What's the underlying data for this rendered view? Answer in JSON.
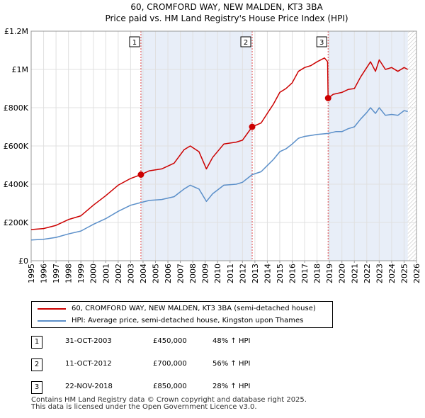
{
  "chart_data": {
    "type": "line",
    "title": "60, CROMFORD WAY, NEW MALDEN, KT3 3BA",
    "subtitle": "Price paid vs. HM Land Registry's House Price Index (HPI)",
    "x_range": [
      1995,
      2026
    ],
    "ylim": [
      0,
      1200000
    ],
    "y_ticks": [
      {
        "value": 0,
        "label": "£0"
      },
      {
        "value": 200000,
        "label": "£200K"
      },
      {
        "value": 400000,
        "label": "£400K"
      },
      {
        "value": 600000,
        "label": "£600K"
      },
      {
        "value": 800000,
        "label": "£800K"
      },
      {
        "value": 1000000,
        "label": "£1M"
      },
      {
        "value": 1200000,
        "label": "£1.2M"
      }
    ],
    "x_ticks": [
      1995,
      1996,
      1997,
      1998,
      1999,
      2000,
      2001,
      2002,
      2003,
      2004,
      2005,
      2006,
      2007,
      2008,
      2009,
      2010,
      2011,
      2012,
      2013,
      2014,
      2015,
      2016,
      2017,
      2018,
      2019,
      2020,
      2021,
      2022,
      2023,
      2024,
      2025,
      2026
    ],
    "grid": true,
    "shaded_ranges": [
      [
        2003.83,
        2012.78
      ],
      [
        2018.89,
        2025.3
      ]
    ],
    "future_hatch_from": 2025.3,
    "series": [
      {
        "name": "60, CROMFORD WAY, NEW MALDEN, KT3 3BA (semi-detached house)",
        "color": "#cc0000",
        "points": [
          [
            1995.0,
            163000
          ],
          [
            1996.0,
            168000
          ],
          [
            1997.0,
            185000
          ],
          [
            1998.0,
            215000
          ],
          [
            1999.0,
            235000
          ],
          [
            2000.0,
            290000
          ],
          [
            2001.0,
            340000
          ],
          [
            2002.0,
            395000
          ],
          [
            2003.0,
            430000
          ],
          [
            2003.83,
            450000
          ],
          [
            2004.5,
            470000
          ],
          [
            2005.5,
            480000
          ],
          [
            2006.5,
            510000
          ],
          [
            2007.3,
            580000
          ],
          [
            2007.8,
            600000
          ],
          [
            2008.5,
            570000
          ],
          [
            2009.1,
            480000
          ],
          [
            2009.6,
            540000
          ],
          [
            2010.5,
            610000
          ],
          [
            2011.5,
            620000
          ],
          [
            2012.0,
            630000
          ],
          [
            2012.78,
            700000
          ],
          [
            2013.5,
            720000
          ],
          [
            2014.5,
            820000
          ],
          [
            2015.0,
            880000
          ],
          [
            2015.5,
            900000
          ],
          [
            2016.0,
            930000
          ],
          [
            2016.5,
            990000
          ],
          [
            2017.0,
            1010000
          ],
          [
            2017.5,
            1020000
          ],
          [
            2018.0,
            1040000
          ],
          [
            2018.6,
            1060000
          ],
          [
            2018.85,
            1040000
          ],
          [
            2018.89,
            850000
          ],
          [
            2019.3,
            870000
          ],
          [
            2020.0,
            880000
          ],
          [
            2020.5,
            895000
          ],
          [
            2021.0,
            900000
          ],
          [
            2021.5,
            960000
          ],
          [
            2022.0,
            1010000
          ],
          [
            2022.3,
            1040000
          ],
          [
            2022.7,
            990000
          ],
          [
            2023.0,
            1050000
          ],
          [
            2023.5,
            1000000
          ],
          [
            2024.0,
            1010000
          ],
          [
            2024.5,
            990000
          ],
          [
            2025.0,
            1010000
          ],
          [
            2025.3,
            1000000
          ]
        ]
      },
      {
        "name": "HPI: Average price, semi-detached house, Kingston upon Thames",
        "color": "#5b8fc9",
        "points": [
          [
            1995.0,
            108000
          ],
          [
            1996.0,
            112000
          ],
          [
            1997.0,
            122000
          ],
          [
            1998.0,
            140000
          ],
          [
            1999.0,
            155000
          ],
          [
            2000.0,
            190000
          ],
          [
            2001.0,
            220000
          ],
          [
            2002.0,
            258000
          ],
          [
            2003.0,
            290000
          ],
          [
            2003.83,
            304000
          ],
          [
            2004.5,
            315000
          ],
          [
            2005.5,
            320000
          ],
          [
            2006.5,
            335000
          ],
          [
            2007.3,
            375000
          ],
          [
            2007.8,
            395000
          ],
          [
            2008.5,
            375000
          ],
          [
            2009.1,
            310000
          ],
          [
            2009.6,
            350000
          ],
          [
            2010.5,
            395000
          ],
          [
            2011.5,
            400000
          ],
          [
            2012.0,
            410000
          ],
          [
            2012.78,
            450000
          ],
          [
            2013.5,
            465000
          ],
          [
            2014.5,
            530000
          ],
          [
            2015.0,
            570000
          ],
          [
            2015.5,
            585000
          ],
          [
            2016.0,
            610000
          ],
          [
            2016.5,
            640000
          ],
          [
            2017.0,
            650000
          ],
          [
            2017.5,
            655000
          ],
          [
            2018.0,
            660000
          ],
          [
            2018.89,
            665000
          ],
          [
            2019.5,
            675000
          ],
          [
            2020.0,
            675000
          ],
          [
            2020.5,
            690000
          ],
          [
            2021.0,
            700000
          ],
          [
            2021.5,
            740000
          ],
          [
            2022.0,
            775000
          ],
          [
            2022.3,
            800000
          ],
          [
            2022.7,
            770000
          ],
          [
            2023.0,
            800000
          ],
          [
            2023.5,
            760000
          ],
          [
            2024.0,
            765000
          ],
          [
            2024.5,
            760000
          ],
          [
            2025.0,
            785000
          ],
          [
            2025.3,
            780000
          ]
        ]
      }
    ],
    "sales": [
      {
        "id": "1",
        "x": 2003.83,
        "y": 450000
      },
      {
        "id": "2",
        "x": 2012.78,
        "y": 700000
      },
      {
        "id": "3",
        "x": 2018.89,
        "y": 850000
      }
    ]
  },
  "legend": {
    "property": "60, CROMFORD WAY, NEW MALDEN, KT3 3BA (semi-detached house)",
    "hpi": "HPI: Average price, semi-detached house, Kingston upon Thames"
  },
  "sales_table": [
    {
      "num": "1",
      "date": "31-OCT-2003",
      "price": "£450,000",
      "hpi": "48% ↑ HPI"
    },
    {
      "num": "2",
      "date": "11-OCT-2012",
      "price": "£700,000",
      "hpi": "56% ↑ HPI"
    },
    {
      "num": "3",
      "date": "22-NOV-2018",
      "price": "£850,000",
      "hpi": "28% ↑ HPI"
    }
  ],
  "footer": {
    "line1": "Contains HM Land Registry data © Crown copyright and database right 2025.",
    "line2": "This data is licensed under the Open Government Licence v3.0."
  },
  "colors": {
    "property": "#cc0000",
    "hpi": "#5b8fc9",
    "shade": "#e8eef8"
  }
}
